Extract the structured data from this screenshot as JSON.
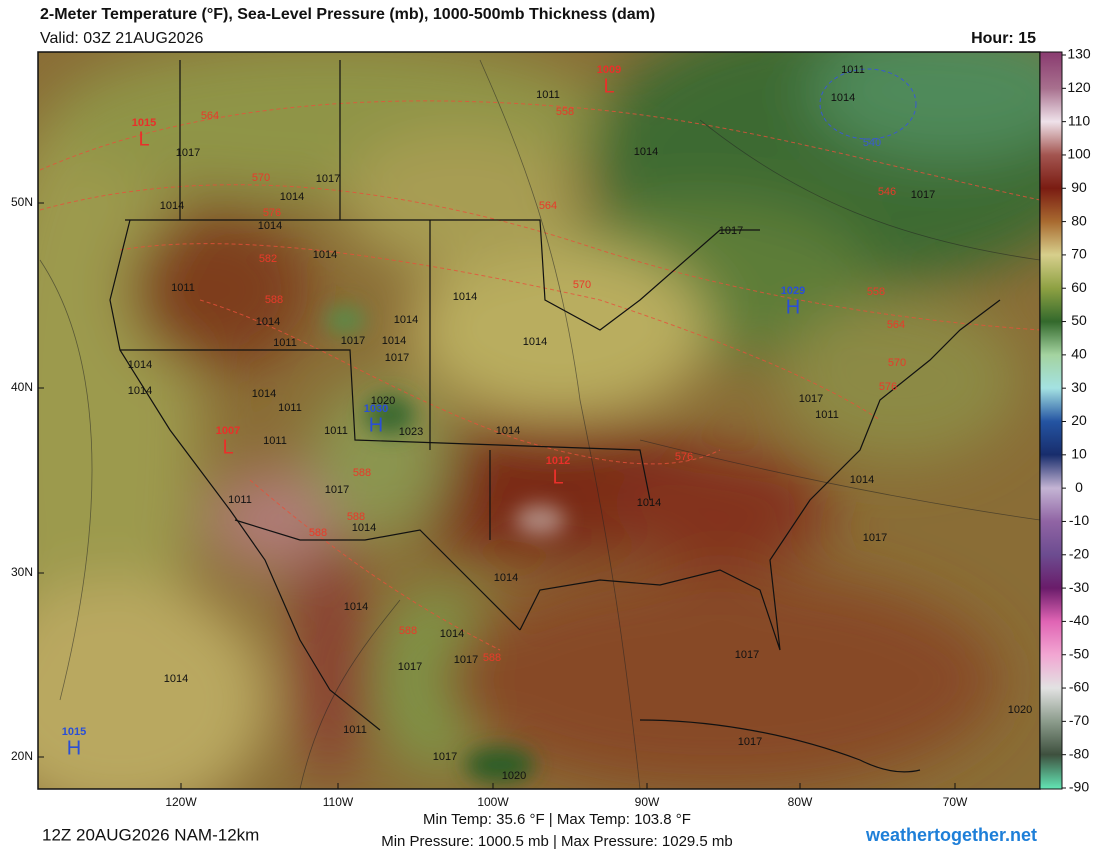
{
  "header": {
    "title": "2-Meter Temperature (°F), Sea-Level Pressure (mb), 1000-500mb Thickness (dam)",
    "valid": "Valid: 03Z 21AUG2026",
    "hour": "Hour: 15"
  },
  "map": {
    "lat_labels": [
      "50N",
      "40N",
      "30N",
      "20N"
    ],
    "lon_labels": [
      "120W",
      "110W",
      "100W",
      "90W",
      "80W",
      "70W"
    ],
    "pressure_centers": [
      {
        "letter": "L",
        "value": "1015"
      },
      {
        "letter": "L",
        "value": "1009"
      },
      {
        "letter": "H",
        "value": "1030"
      },
      {
        "letter": "H",
        "value": "1029"
      },
      {
        "letter": "L",
        "value": "1012"
      },
      {
        "letter": "L",
        "value": "1007"
      },
      {
        "letter": "H",
        "value": "1015"
      }
    ],
    "isobar_labels": [
      "1011",
      "1011",
      "1014",
      "1017",
      "1014",
      "1017",
      "1014",
      "1014",
      "1014",
      "1017",
      "1014",
      "1011",
      "1014",
      "1014",
      "1014",
      "1011",
      "1017",
      "1014",
      "1017",
      "1014",
      "1014",
      "1014",
      "1014",
      "1011",
      "1020",
      "1023",
      "1014",
      "1011",
      "1011",
      "1017",
      "1011",
      "1017",
      "1011",
      "1017",
      "1014",
      "1014",
      "1017",
      "1014",
      "1014",
      "1014",
      "1017",
      "1017",
      "1014",
      "1017",
      "1011",
      "1017",
      "1017",
      "1020",
      "1020",
      "1014"
    ],
    "thickness_labels": [
      "564",
      "558",
      "570",
      "576",
      "564",
      "582",
      "588",
      "570",
      "546",
      "558",
      "564",
      "570",
      "576",
      "576",
      "588",
      "588",
      "588",
      "588",
      "588",
      "540"
    ]
  },
  "colorbar": {
    "ticks": [
      130,
      120,
      110,
      100,
      90,
      80,
      70,
      60,
      50,
      40,
      30,
      20,
      10,
      0,
      -10,
      -20,
      -30,
      -40,
      -50,
      -60,
      -70,
      -80,
      -90
    ]
  },
  "footer": {
    "run": "12Z 20AUG2026 NAM-12km",
    "stats_temp": "Min Temp:  35.6 °F | Max Temp: 103.8 °F",
    "stats_pressure": "Min Pressure: 1000.5 mb | Max Pressure: 1029.5 mb",
    "site": "weathertogether.net"
  }
}
